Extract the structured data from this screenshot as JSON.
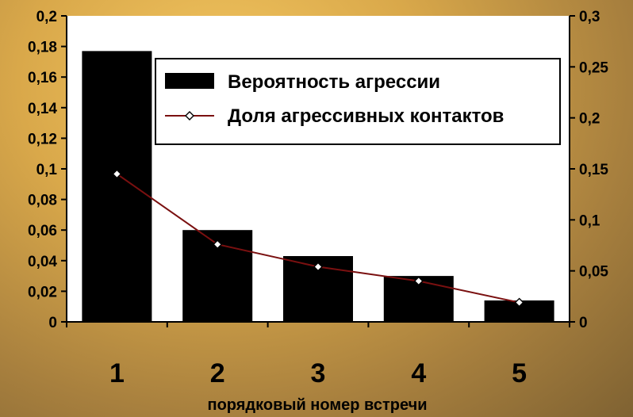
{
  "chart_data": {
    "type": "bar",
    "categories": [
      "1",
      "2",
      "3",
      "4",
      "5"
    ],
    "xlabel": "порядковый номер встречи",
    "series": [
      {
        "name": "Вероятность агрессии",
        "type": "bar",
        "axis": "left",
        "color": "#000000",
        "values": [
          0.177,
          0.06,
          0.043,
          0.03,
          0.014
        ]
      },
      {
        "name": "Доля агрессивных контактов",
        "type": "line",
        "axis": "right",
        "color": "#7a1010",
        "marker": "diamond",
        "values": [
          0.145,
          0.076,
          0.054,
          0.04,
          0.019
        ]
      }
    ],
    "y_left": {
      "ylim": [
        0,
        0.2
      ],
      "ticks": [
        "0",
        "0,02",
        "0,04",
        "0,06",
        "0,08",
        "0,1",
        "0,12",
        "0,14",
        "0,16",
        "0,18",
        "0,2"
      ]
    },
    "y_right": {
      "ylim": [
        0,
        0.3
      ],
      "ticks": [
        "0",
        "0,05",
        "0,1",
        "0,15",
        "0,2",
        "0,25",
        "0,3"
      ]
    },
    "grid": false,
    "legend_position": "top-right",
    "plot_background": "#ffffff"
  }
}
